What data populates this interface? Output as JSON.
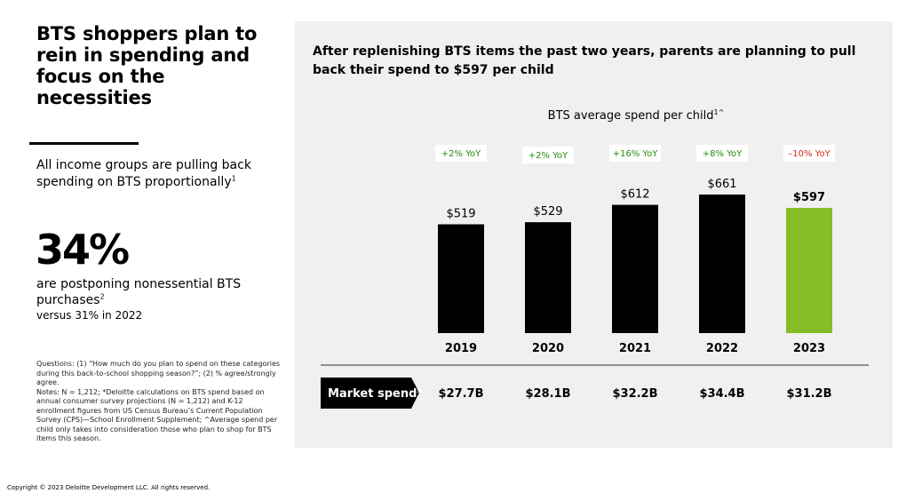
{
  "left": {
    "title": "BTS shoppers plan to rein in spending and focus on the necessities",
    "subtitle": "All income groups are pulling back spending on BTS proportionally",
    "subtitle_sup": "1",
    "stat_value": "34%",
    "stat_desc": "are postponing nonessential BTS purchases",
    "stat_desc_sup": "2",
    "stat_versus": "versus 31% in 2022",
    "notes": "Questions: (1) “How much do you plan to spend on these categories during this back-to-school shopping season?”; (2) % agree/strongly agree.\nNotes: N = 1,212; *Deloitte calculations on BTS spend based on annual consumer survey projections (N = 1,212) and K-12 enrollment figures from US Census Bureau’s Current Population Survey (CPS)—School Enrollment Supplement; ^Average spend per child only takes into consideration those who plan to shop for BTS items this season."
  },
  "headline": "After replenishing BTS items the past two years, parents are planning to pull back their spend to $597 per child",
  "copyright": "Copyright © 2023 Deloitte Development LLC. All rights reserved.",
  "colors": {
    "bar": "#000000",
    "highlight_bar": "#86bc25",
    "yoy_positive": "#26890d",
    "yoy_negative": "#da291c",
    "panel": "#f0f0f0"
  },
  "chart_data": {
    "type": "bar",
    "title": "BTS average spend per child",
    "title_sup": "1^",
    "categories": [
      "2019",
      "2020",
      "2021",
      "2022",
      "2023"
    ],
    "values": [
      519,
      529,
      612,
      661,
      597
    ],
    "value_labels": [
      "$519",
      "$529",
      "$612",
      "$661",
      "$597"
    ],
    "yoy_labels": [
      "+2% YoY",
      "+2% YoY",
      "+16% YoY",
      "+8% YoY",
      "–10% YoY"
    ],
    "yoy_sign": [
      "positive",
      "positive",
      "positive",
      "positive",
      "negative"
    ],
    "highlight_index": 4,
    "ylim": [
      0,
      661
    ],
    "market_spend_label": "Market spend*",
    "market_spend": [
      "$27.7B",
      "$28.1B",
      "$32.2B",
      "$34.4B",
      "$31.2B"
    ]
  }
}
